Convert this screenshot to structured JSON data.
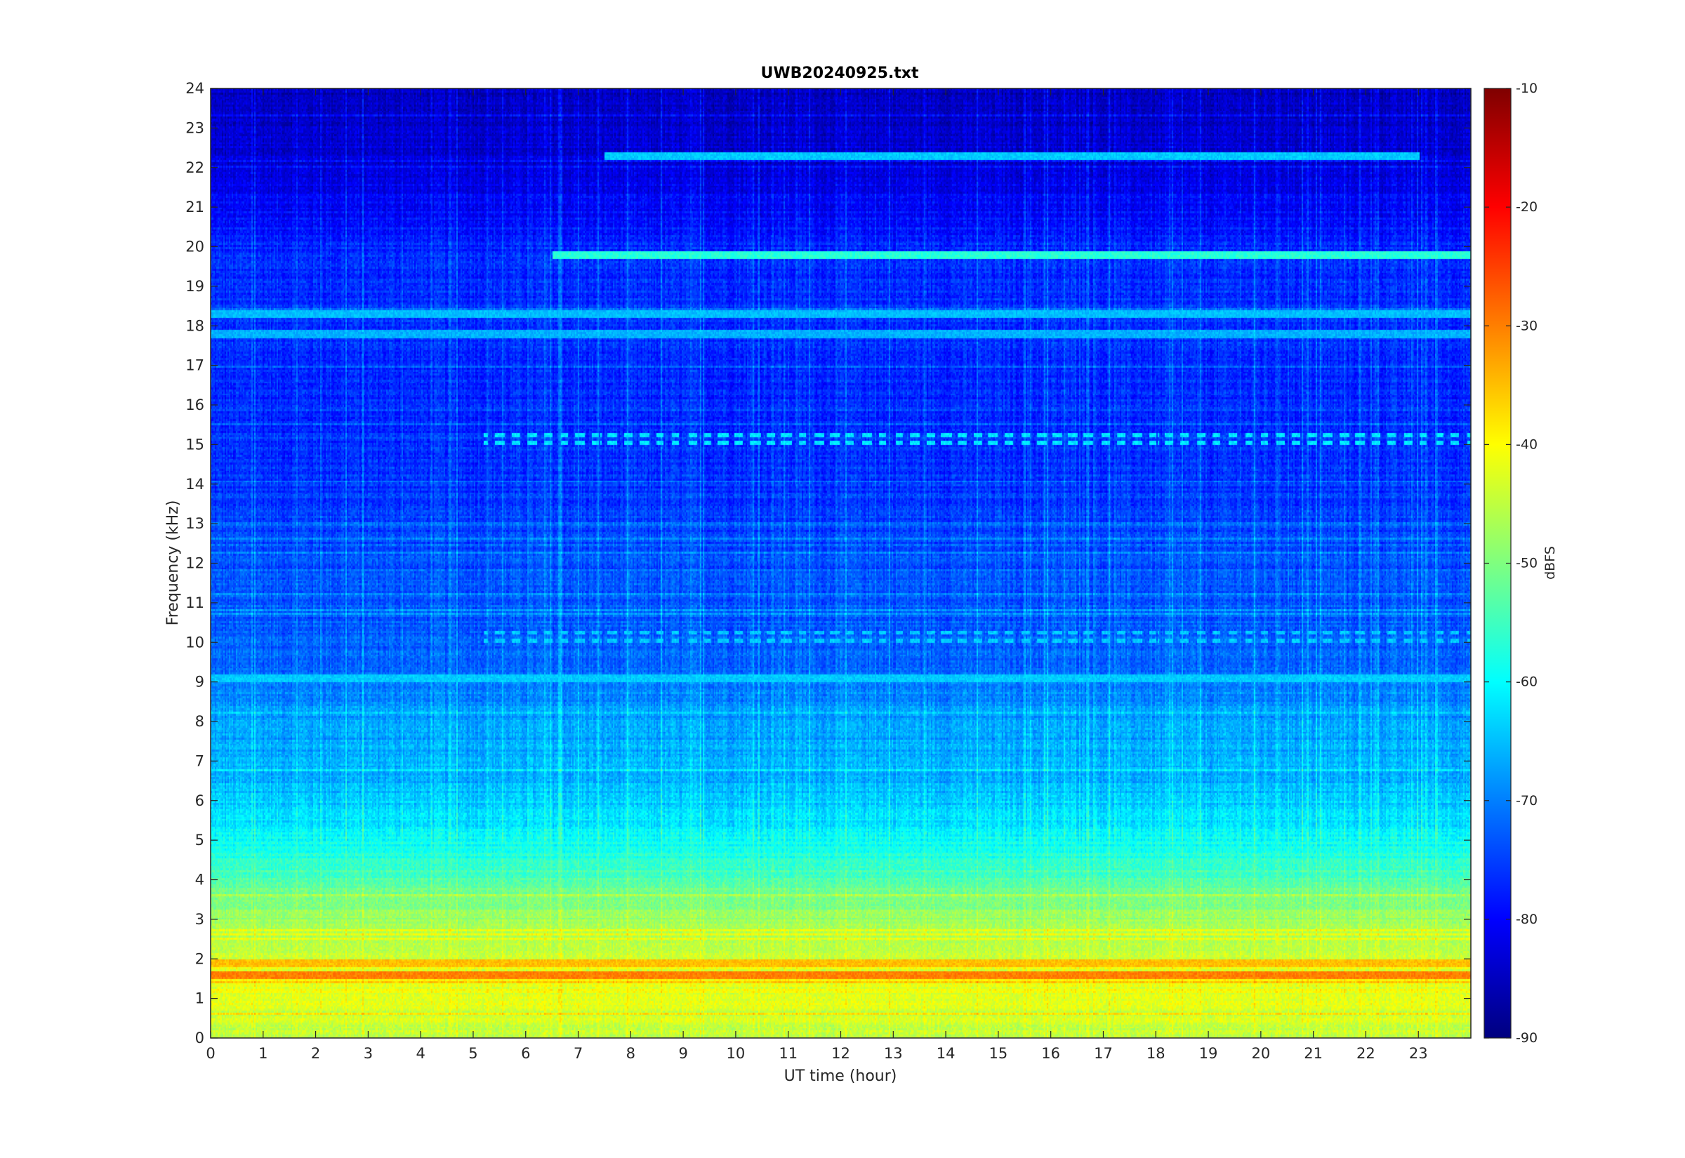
{
  "chart_data": {
    "type": "heatmap",
    "title": "UWB20240925.txt",
    "xlabel": "UT time (hour)",
    "ylabel": "Frequency (kHz)",
    "xlim": [
      0,
      24
    ],
    "ylim": [
      0,
      24
    ],
    "x_ticks": [
      0,
      1,
      2,
      3,
      4,
      5,
      6,
      7,
      8,
      9,
      10,
      11,
      12,
      13,
      14,
      15,
      16,
      17,
      18,
      19,
      20,
      21,
      22,
      23
    ],
    "y_ticks": [
      0,
      1,
      2,
      3,
      4,
      5,
      6,
      7,
      8,
      9,
      10,
      11,
      12,
      13,
      14,
      15,
      16,
      17,
      18,
      19,
      20,
      21,
      22,
      23,
      24
    ],
    "colorbar": {
      "label": "dBFS",
      "range": [
        -90,
        -10
      ],
      "ticks": [
        -90,
        -80,
        -70,
        -60,
        -50,
        -40,
        -30,
        -20,
        -10
      ],
      "colormap": "jet"
    },
    "features": {
      "background_profile_dbfs": [
        [
          0,
          -45
        ],
        [
          0.5,
          -44
        ],
        [
          1.5,
          -41
        ],
        [
          2.5,
          -46
        ],
        [
          3.5,
          -50
        ],
        [
          4.5,
          -57
        ],
        [
          5.5,
          -62
        ],
        [
          6.5,
          -66
        ],
        [
          7.5,
          -67
        ],
        [
          8.5,
          -69
        ],
        [
          9.5,
          -72
        ],
        [
          10.5,
          -73
        ],
        [
          12,
          -74
        ],
        [
          14,
          -76
        ],
        [
          16,
          -77
        ],
        [
          18,
          -76
        ],
        [
          20,
          -77
        ],
        [
          21,
          -80
        ],
        [
          22,
          -83
        ],
        [
          24,
          -85
        ]
      ],
      "horizontal_lines": [
        {
          "freq_khz": 19.8,
          "dbfs": -57,
          "start_hour": 6.5,
          "end_hour": 24
        },
        {
          "freq_khz": 18.3,
          "dbfs": -65,
          "start_hour": 0,
          "end_hour": 24
        },
        {
          "freq_khz": 22.3,
          "dbfs": -64,
          "start_hour": 7.5,
          "end_hour": 23
        },
        {
          "freq_khz": 17.8,
          "dbfs": -66,
          "start_hour": 0,
          "end_hour": 24
        },
        {
          "freq_khz": 9.1,
          "dbfs": -64,
          "start_hour": 0,
          "end_hour": 24
        },
        {
          "freq_khz": 1.6,
          "dbfs": -30,
          "start_hour": 0,
          "end_hour": 24
        },
        {
          "freq_khz": 1.9,
          "dbfs": -35,
          "start_hour": 0,
          "end_hour": 24
        }
      ],
      "pulsed_bands": [
        {
          "freq_min_khz": 14.9,
          "freq_max_khz": 15.3,
          "dbfs": -62,
          "start_hour": 5.2,
          "end_hour": 24
        },
        {
          "freq_min_khz": 9.9,
          "freq_max_khz": 10.3,
          "dbfs": -64,
          "start_hour": 5.2,
          "end_hour": 24
        }
      ]
    }
  }
}
